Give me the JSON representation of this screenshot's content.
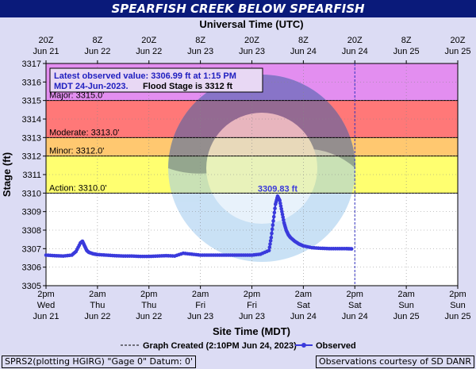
{
  "title": "SPEARFISH CREEK BELOW SPEARFISH",
  "top_axis_title": "Universal Time (UTC)",
  "bottom_axis_title": "Site Time (MDT)",
  "y_axis_title": "Stage (ft)",
  "info_box": {
    "line1": "Latest observed value: 3306.99 ft at 1:15 PM",
    "line2": "MDT 24-Jun-2023.",
    "line2b": "Flood Stage is 3312 ft"
  },
  "peak_label": "3309.83 ft",
  "legend": {
    "created": "Graph Created (2:10PM Jun 24, 2023)",
    "observed": "Observed"
  },
  "footer_left": "SPRS2(plotting HGIRG) \"Gage 0\" Datum: 0'",
  "footer_right": "Observations courtesy of SD DANR",
  "colors": {
    "major": "#e38ef0",
    "moderate": "#ff7878",
    "minor": "#ffc870",
    "action": "#ffff70",
    "observed": "#3a3adc",
    "title_bg": "#0a1a7a"
  },
  "chart_data": {
    "type": "line",
    "ylim": [
      3305,
      3317
    ],
    "yticks": [
      3305,
      3306,
      3307,
      3308,
      3309,
      3310,
      3311,
      3312,
      3313,
      3314,
      3315,
      3316,
      3317
    ],
    "x_range_hours": [
      0,
      96
    ],
    "bottom_ticks": [
      {
        "t": "2pm",
        "d": "Wed",
        "e": "Jun 21"
      },
      {
        "t": "2am",
        "d": "Thu",
        "e": "Jun 22"
      },
      {
        "t": "2pm",
        "d": "Thu",
        "e": "Jun 22"
      },
      {
        "t": "2am",
        "d": "Fri",
        "e": "Jun 23"
      },
      {
        "t": "2pm",
        "d": "Fri",
        "e": "Jun 23"
      },
      {
        "t": "2am",
        "d": "Sat",
        "e": "Jun 24"
      },
      {
        "t": "2pm",
        "d": "Sat",
        "e": "Jun 24"
      },
      {
        "t": "2am",
        "d": "Sun",
        "e": "Jun 25"
      },
      {
        "t": "2pm",
        "d": "Sun",
        "e": "Jun 25"
      }
    ],
    "top_ticks": [
      {
        "t": "20Z",
        "d": "Jun 21"
      },
      {
        "t": "8Z",
        "d": "Jun 22"
      },
      {
        "t": "20Z",
        "d": "Jun 22"
      },
      {
        "t": "8Z",
        "d": "Jun 23"
      },
      {
        "t": "20Z",
        "d": "Jun 23"
      },
      {
        "t": "8Z",
        "d": "Jun 24"
      },
      {
        "t": "20Z",
        "d": "Jun 24"
      },
      {
        "t": "8Z",
        "d": "Jun 25"
      },
      {
        "t": "20Z",
        "d": "Jun 25"
      }
    ],
    "flood_categories": [
      {
        "name": "Major",
        "label": "Major:  3315.0'",
        "from": 3315,
        "to": 3317
      },
      {
        "name": "Moderate",
        "label": "Moderate:  3313.0'",
        "from": 3313,
        "to": 3315
      },
      {
        "name": "Minor",
        "label": "Minor:  3312.0'",
        "from": 3312,
        "to": 3313
      },
      {
        "name": "Action",
        "label": "Action:  3310.0'",
        "from": 3310,
        "to": 3312
      }
    ],
    "graph_created_hour": 72,
    "series": [
      {
        "name": "Observed",
        "x": [
          0,
          2,
          4,
          6,
          7,
          8,
          8.5,
          9,
          9.5,
          10,
          11,
          12,
          14,
          16,
          18,
          20,
          22,
          24,
          26,
          28,
          30,
          32,
          34,
          36,
          38,
          40,
          42,
          44,
          46,
          48,
          50,
          52,
          52.5,
          53,
          53.5,
          54,
          54.5,
          55,
          55.5,
          56,
          56.5,
          57,
          58,
          59,
          60,
          62,
          64,
          66,
          68,
          70,
          71.25
        ],
        "y": [
          3306.65,
          3306.62,
          3306.6,
          3306.65,
          3306.85,
          3307.3,
          3307.4,
          3307.15,
          3306.9,
          3306.8,
          3306.72,
          3306.68,
          3306.65,
          3306.62,
          3306.6,
          3306.6,
          3306.58,
          3306.58,
          3306.6,
          3306.62,
          3306.6,
          3306.75,
          3306.7,
          3306.65,
          3306.65,
          3306.65,
          3306.65,
          3306.65,
          3306.65,
          3306.65,
          3306.7,
          3306.9,
          3307.6,
          3308.5,
          3309.4,
          3309.83,
          3309.6,
          3309.0,
          3308.4,
          3308.0,
          3307.75,
          3307.6,
          3307.4,
          3307.25,
          3307.15,
          3307.05,
          3307.02,
          3307.0,
          3307.0,
          3307.0,
          3306.99
        ]
      }
    ]
  }
}
